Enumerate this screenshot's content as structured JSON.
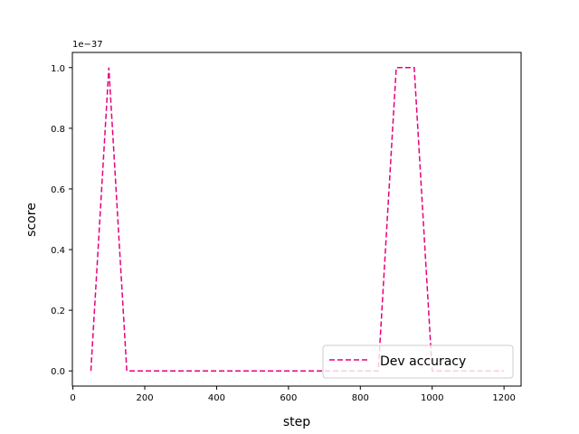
{
  "chart_data": {
    "type": "line",
    "title": "",
    "xlabel": "step",
    "ylabel": "score",
    "offset_text": "1e−37",
    "xlim": [
      -1.5,
      1247.5
    ],
    "ylim": [
      -0.05,
      1.05
    ],
    "xticks": [
      0,
      200,
      400,
      600,
      800,
      1000,
      1200
    ],
    "xtick_labels": [
      "0",
      "200",
      "400",
      "600",
      "800",
      "1000",
      "1200"
    ],
    "yticks": [
      0.0,
      0.2,
      0.4,
      0.6,
      0.8,
      1.0
    ],
    "ytick_labels": [
      "0.0",
      "0.2",
      "0.4",
      "0.6",
      "0.8",
      "1.0"
    ],
    "grid": false,
    "legend_position": "lower-right",
    "series": [
      {
        "name": "Dev accuracy",
        "color": "#e6007e",
        "linestyle": "dashed",
        "x": [
          50,
          100,
          150,
          200,
          250,
          300,
          350,
          400,
          450,
          500,
          550,
          600,
          650,
          700,
          750,
          800,
          850,
          900,
          950,
          1000,
          1050,
          1100,
          1150,
          1200
        ],
        "y": [
          0,
          1,
          0,
          0,
          0,
          0,
          0,
          0,
          0,
          0,
          0,
          0,
          0,
          0,
          0,
          0,
          0,
          1,
          1,
          0,
          0,
          0,
          0,
          0
        ]
      }
    ]
  }
}
